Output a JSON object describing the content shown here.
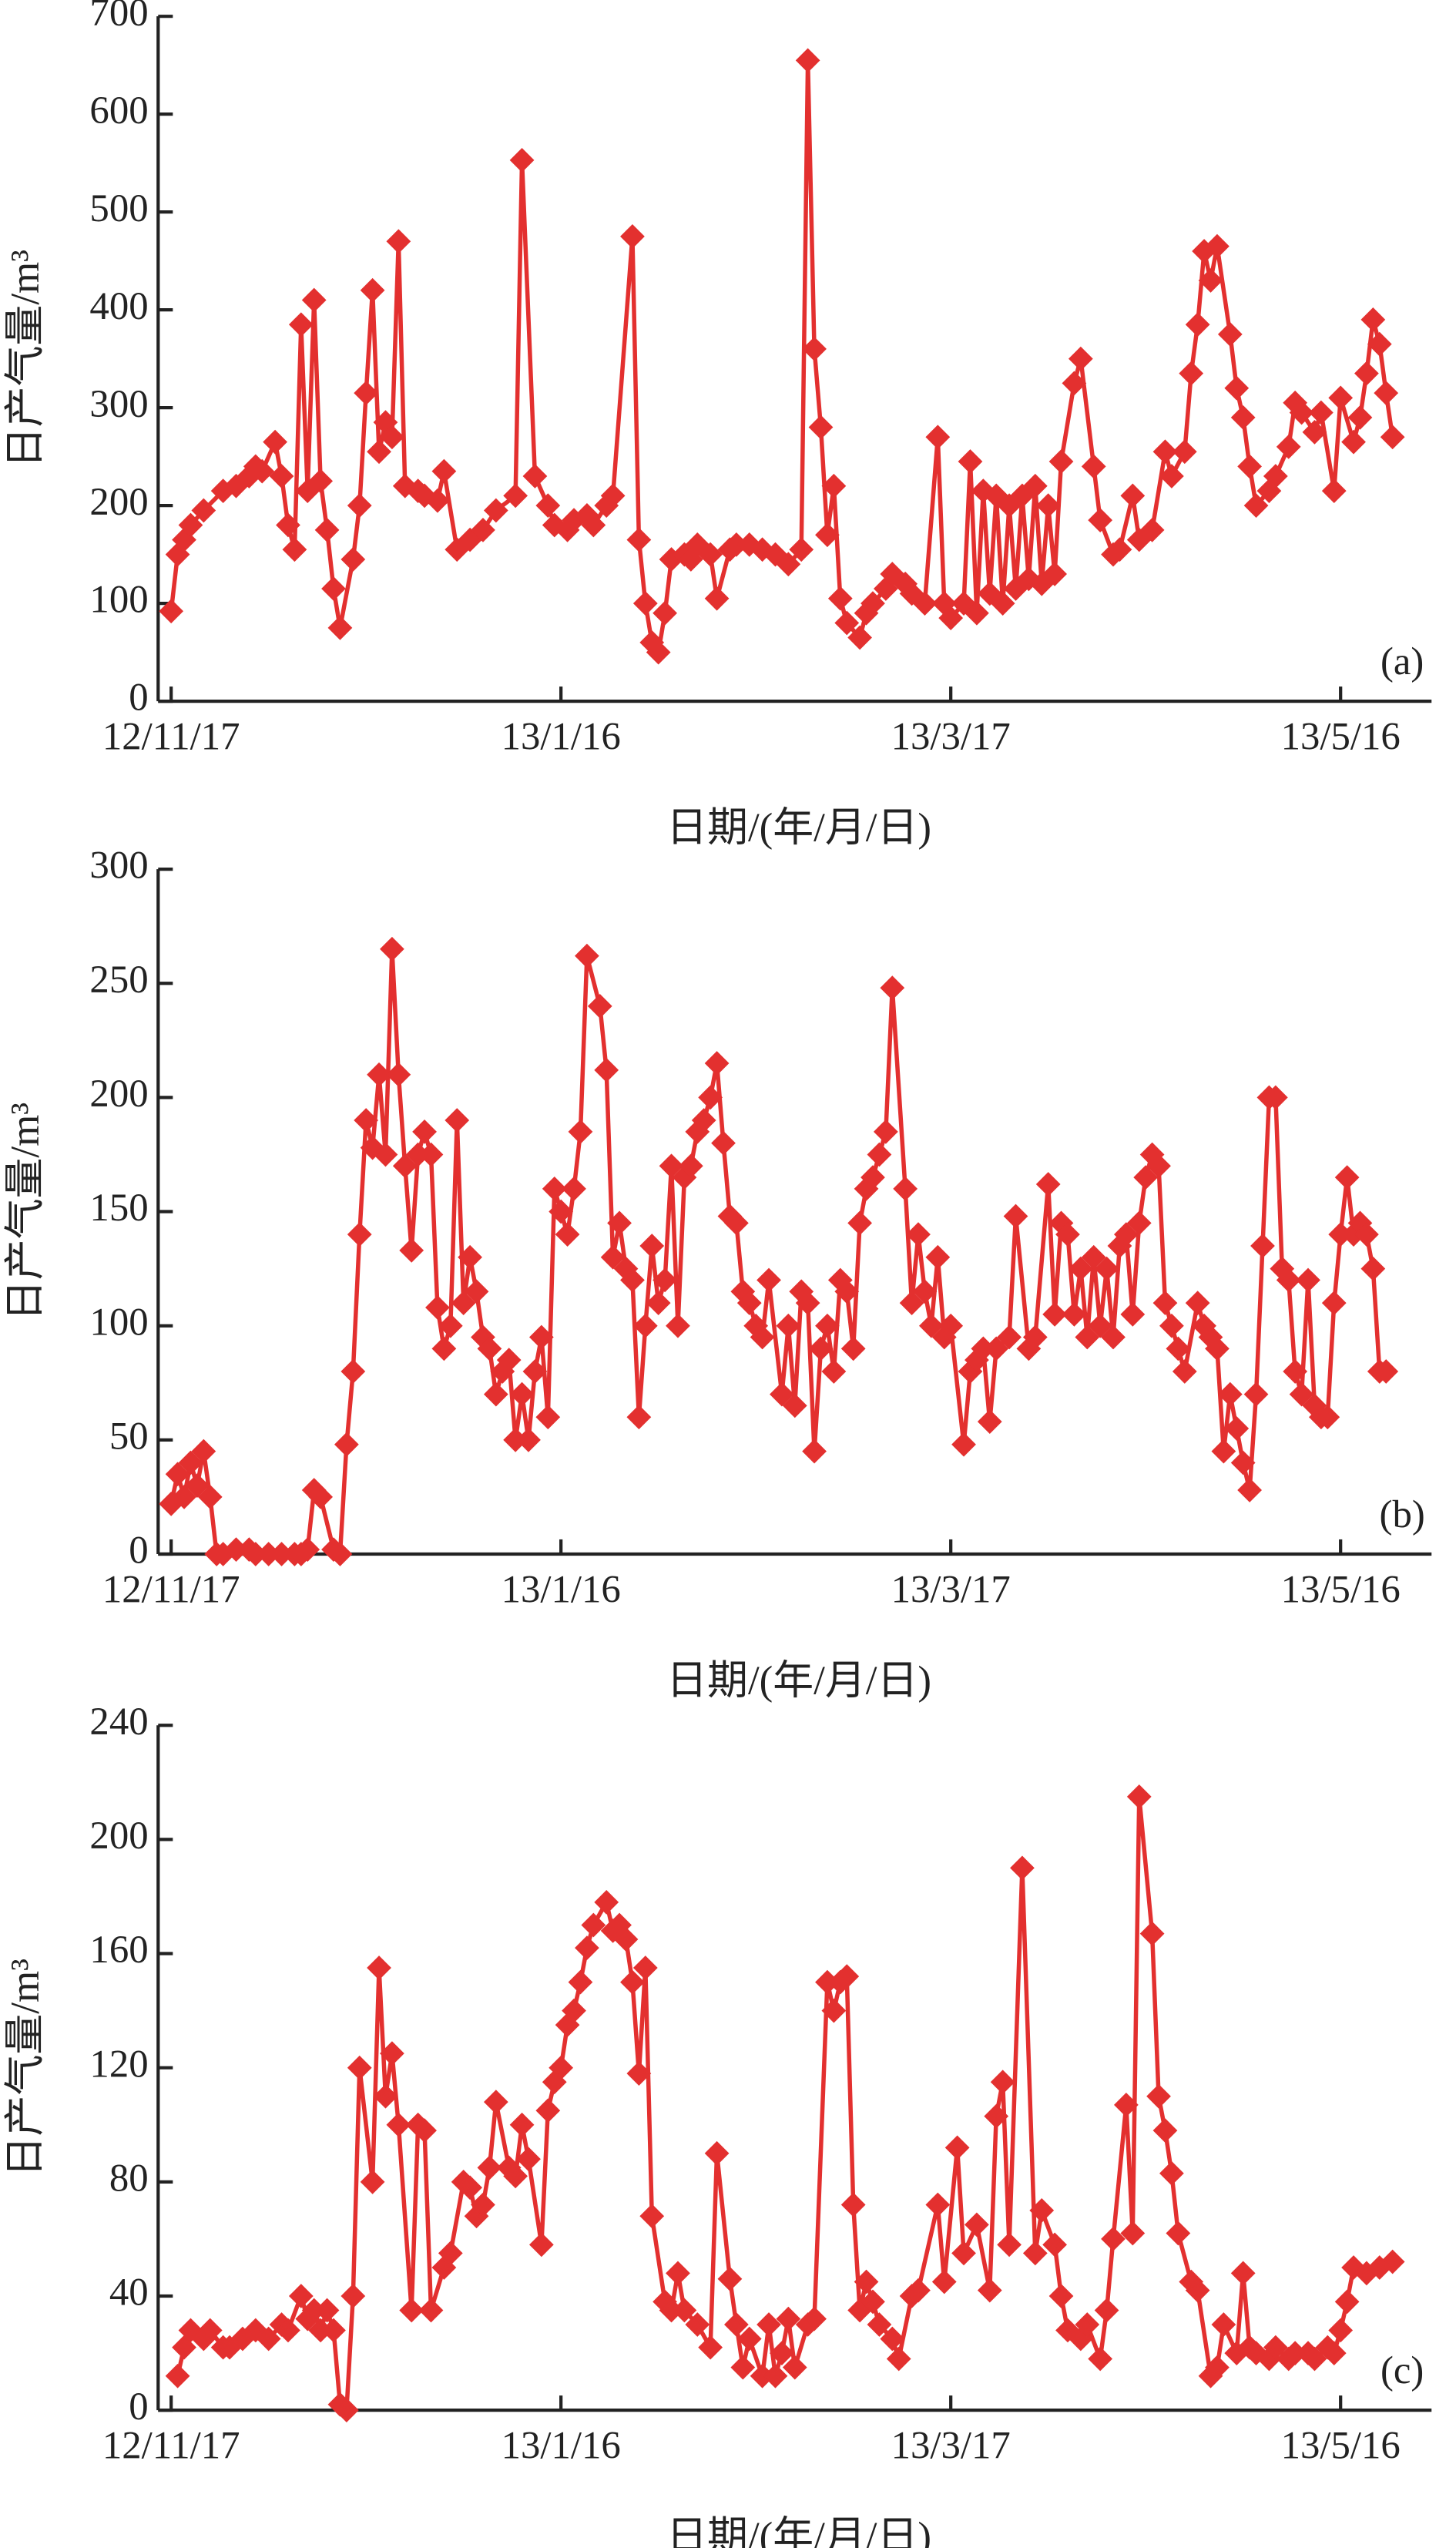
{
  "chart_data": [
    {
      "type": "line",
      "xlabel": "日期/(年/月/日)",
      "ylabel": "日产气量/m³",
      "annotation": "(a)",
      "color": "#e3302f",
      "xlim": [
        -2,
        194
      ],
      "xticks": [
        {
          "value": 0,
          "label": "12/11/17"
        },
        {
          "value": 60,
          "label": "13/1/16"
        },
        {
          "value": 120,
          "label": "13/3/17"
        },
        {
          "value": 180,
          "label": "13/5/16"
        }
      ],
      "ylim": [
        0,
        700
      ],
      "yticks": [
        0,
        100,
        200,
        300,
        400,
        500,
        600,
        700
      ],
      "x": [
        0,
        1,
        2,
        3,
        5,
        8,
        10,
        12,
        13,
        14,
        16,
        17,
        18,
        19,
        20,
        21,
        22,
        23,
        24,
        25,
        26,
        28,
        29,
        30,
        31,
        32,
        33,
        34,
        35,
        36,
        38,
        39,
        41,
        42,
        44,
        46,
        48,
        50,
        53,
        54,
        56,
        58,
        59,
        61,
        62,
        64,
        65,
        67,
        68,
        71,
        72,
        73,
        74,
        75,
        76,
        77,
        79,
        80,
        81,
        83,
        84,
        86,
        87,
        89,
        91,
        93,
        95,
        97,
        98,
        99,
        100,
        101,
        102,
        103,
        104,
        106,
        107,
        108,
        110,
        111,
        113,
        114,
        116,
        118,
        119,
        120,
        122,
        123,
        124,
        125,
        126,
        127,
        128,
        129,
        130,
        131,
        132,
        133,
        134,
        135,
        136,
        137,
        139,
        140,
        142,
        143,
        145,
        146,
        148,
        149,
        151,
        153,
        154,
        156,
        157,
        158,
        159,
        160,
        161,
        163,
        164,
        165,
        166,
        167,
        169,
        170,
        172,
        173,
        174,
        176,
        177,
        179,
        180,
        182,
        183,
        184,
        185,
        186,
        187,
        188
      ],
      "values": [
        92,
        150,
        165,
        180,
        195,
        215,
        220,
        230,
        240,
        235,
        265,
        230,
        180,
        155,
        385,
        215,
        410,
        225,
        175,
        115,
        75,
        145,
        200,
        315,
        420,
        255,
        285,
        270,
        470,
        220,
        215,
        210,
        205,
        235,
        155,
        165,
        175,
        195,
        210,
        553,
        230,
        200,
        180,
        175,
        185,
        190,
        180,
        200,
        210,
        475,
        165,
        100,
        60,
        50,
        90,
        145,
        150,
        145,
        160,
        150,
        105,
        155,
        160,
        160,
        155,
        150,
        140,
        155,
        655,
        360,
        280,
        170,
        220,
        105,
        80,
        65,
        90,
        100,
        115,
        130,
        120,
        110,
        100,
        270,
        100,
        85,
        100,
        245,
        90,
        215,
        110,
        210,
        100,
        200,
        115,
        210,
        125,
        220,
        120,
        200,
        130,
        245,
        325,
        350,
        240,
        185,
        150,
        155,
        210,
        165,
        175,
        255,
        230,
        255,
        335,
        385,
        460,
        430,
        465,
        375,
        320,
        290,
        240,
        200,
        215,
        230,
        260,
        305,
        295,
        275,
        295,
        215,
        310,
        265,
        290,
        335,
        390,
        365,
        315,
        270
      ]
    },
    {
      "type": "line",
      "xlabel": "日期/(年/月/日)",
      "ylabel": "日产气量/m³",
      "annotation": "(b)",
      "color": "#e3302f",
      "xlim": [
        -2,
        194
      ],
      "xticks": [
        {
          "value": 0,
          "label": "12/11/17"
        },
        {
          "value": 60,
          "label": "13/1/16"
        },
        {
          "value": 120,
          "label": "13/3/17"
        },
        {
          "value": 180,
          "label": "13/5/16"
        }
      ],
      "ylim": [
        0,
        300
      ],
      "yticks": [
        0,
        50,
        100,
        150,
        200,
        250,
        300
      ],
      "x": [
        0,
        1,
        2,
        3,
        4,
        5,
        6,
        7,
        8,
        10,
        12,
        13,
        15,
        17,
        19,
        20,
        21,
        22,
        23,
        25,
        26,
        27,
        28,
        29,
        30,
        31,
        32,
        33,
        34,
        35,
        36,
        37,
        38,
        39,
        40,
        41,
        42,
        43,
        44,
        45,
        46,
        47,
        48,
        49,
        50,
        51,
        52,
        53,
        54,
        55,
        56,
        57,
        58,
        59,
        60,
        61,
        62,
        63,
        64,
        66,
        67,
        68,
        69,
        70,
        71,
        72,
        73,
        74,
        75,
        76,
        77,
        78,
        79,
        80,
        81,
        82,
        83,
        84,
        85,
        86,
        87,
        88,
        89,
        90,
        91,
        92,
        94,
        95,
        96,
        97,
        98,
        99,
        100,
        101,
        102,
        103,
        104,
        105,
        106,
        107,
        108,
        109,
        110,
        111,
        113,
        114,
        115,
        116,
        117,
        118,
        119,
        120,
        122,
        123,
        124,
        125,
        126,
        127,
        129,
        130,
        132,
        133,
        135,
        136,
        137,
        138,
        139,
        140,
        141,
        142,
        143,
        144,
        145,
        146,
        147,
        148,
        149,
        150,
        151,
        152,
        153,
        154,
        155,
        156,
        158,
        159,
        160,
        161,
        162,
        163,
        164,
        165,
        166,
        167,
        168,
        169,
        170,
        171,
        172,
        173,
        174,
        175,
        176,
        177,
        178,
        179,
        180,
        181,
        182,
        183,
        184,
        185,
        186,
        187
      ],
      "values": [
        22,
        35,
        25,
        40,
        30,
        45,
        25,
        0,
        0,
        2,
        2,
        0,
        0,
        0,
        0,
        0,
        2,
        28,
        25,
        2,
        0,
        48,
        80,
        140,
        190,
        178,
        210,
        175,
        265,
        210,
        170,
        133,
        175,
        185,
        175,
        108,
        90,
        100,
        190,
        110,
        130,
        115,
        95,
        90,
        70,
        80,
        85,
        50,
        70,
        50,
        80,
        95,
        60,
        160,
        150,
        140,
        160,
        185,
        262,
        240,
        212,
        130,
        145,
        125,
        120,
        60,
        100,
        135,
        110,
        120,
        170,
        100,
        165,
        170,
        185,
        190,
        200,
        215,
        180,
        148,
        145,
        115,
        110,
        100,
        95,
        120,
        70,
        100,
        65,
        115,
        110,
        45,
        90,
        100,
        80,
        120,
        115,
        90,
        145,
        160,
        165,
        175,
        185,
        248,
        160,
        110,
        140,
        115,
        100,
        130,
        95,
        100,
        48,
        80,
        85,
        90,
        58,
        90,
        95,
        148,
        90,
        95,
        162,
        105,
        145,
        140,
        105,
        125,
        95,
        130,
        100,
        125,
        95,
        135,
        140,
        105,
        145,
        165,
        175,
        170,
        110,
        100,
        90,
        80,
        110,
        100,
        95,
        90,
        45,
        70,
        55,
        40,
        28,
        70,
        135,
        200,
        200,
        125,
        120,
        80,
        70,
        120,
        65,
        60,
        60,
        110,
        140,
        165,
        140,
        145,
        140,
        125,
        80,
        80
      ]
    },
    {
      "type": "line",
      "xlabel": "日期/(年/月/日)",
      "ylabel": "日产气量/m³",
      "annotation": "(c)",
      "color": "#e3302f",
      "xlim": [
        -2,
        194
      ],
      "xticks": [
        {
          "value": 0,
          "label": "12/11/17"
        },
        {
          "value": 60,
          "label": "13/1/16"
        },
        {
          "value": 120,
          "label": "13/3/17"
        },
        {
          "value": 180,
          "label": "13/5/16"
        }
      ],
      "ylim": [
        0,
        240
      ],
      "yticks": [
        0,
        40,
        80,
        120,
        160,
        200,
        240
      ],
      "x": [
        1,
        2,
        3,
        5,
        6,
        8,
        9,
        11,
        13,
        15,
        17,
        18,
        20,
        21,
        22,
        23,
        24,
        25,
        26,
        27,
        28,
        29,
        31,
        32,
        33,
        34,
        35,
        37,
        38,
        39,
        40,
        42,
        43,
        45,
        46,
        47,
        48,
        49,
        50,
        52,
        53,
        54,
        55,
        57,
        58,
        59,
        60,
        61,
        62,
        63,
        64,
        65,
        67,
        68,
        69,
        70,
        71,
        72,
        73,
        74,
        76,
        77,
        78,
        79,
        81,
        83,
        84,
        86,
        87,
        88,
        89,
        91,
        92,
        93,
        94,
        95,
        96,
        98,
        99,
        101,
        102,
        103,
        104,
        105,
        106,
        107,
        108,
        109,
        111,
        112,
        114,
        115,
        118,
        119,
        121,
        122,
        124,
        126,
        127,
        128,
        129,
        131,
        133,
        134,
        136,
        137,
        138,
        140,
        141,
        143,
        144,
        145,
        147,
        148,
        149,
        151,
        152,
        153,
        154,
        155,
        157,
        158,
        160,
        161,
        162,
        164,
        165,
        166,
        167,
        169,
        170,
        172,
        173,
        175,
        176,
        178,
        179,
        180,
        181,
        182,
        184,
        186,
        188
      ],
      "values": [
        12,
        22,
        28,
        25,
        28,
        22,
        22,
        25,
        28,
        25,
        30,
        28,
        40,
        32,
        35,
        28,
        35,
        28,
        2,
        0,
        40,
        120,
        80,
        155,
        110,
        125,
        100,
        35,
        100,
        98,
        35,
        50,
        55,
        80,
        78,
        68,
        72,
        85,
        108,
        85,
        82,
        100,
        88,
        58,
        105,
        115,
        120,
        135,
        140,
        150,
        162,
        170,
        178,
        168,
        170,
        165,
        150,
        118,
        155,
        68,
        38,
        35,
        48,
        35,
        30,
        22,
        90,
        46,
        30,
        15,
        25,
        12,
        30,
        12,
        20,
        32,
        15,
        30,
        32,
        150,
        140,
        150,
        152,
        72,
        35,
        45,
        38,
        30,
        25,
        18,
        40,
        42,
        72,
        45,
        92,
        55,
        65,
        42,
        103,
        115,
        58,
        190,
        55,
        70,
        58,
        40,
        28,
        25,
        30,
        18,
        35,
        60,
        107,
        62,
        215,
        167,
        110,
        98,
        83,
        62,
        45,
        42,
        12,
        15,
        30,
        20,
        48,
        22,
        20,
        18,
        22,
        18,
        20,
        20,
        18,
        22,
        20,
        28,
        38,
        50,
        48,
        50,
        52
      ]
    }
  ]
}
